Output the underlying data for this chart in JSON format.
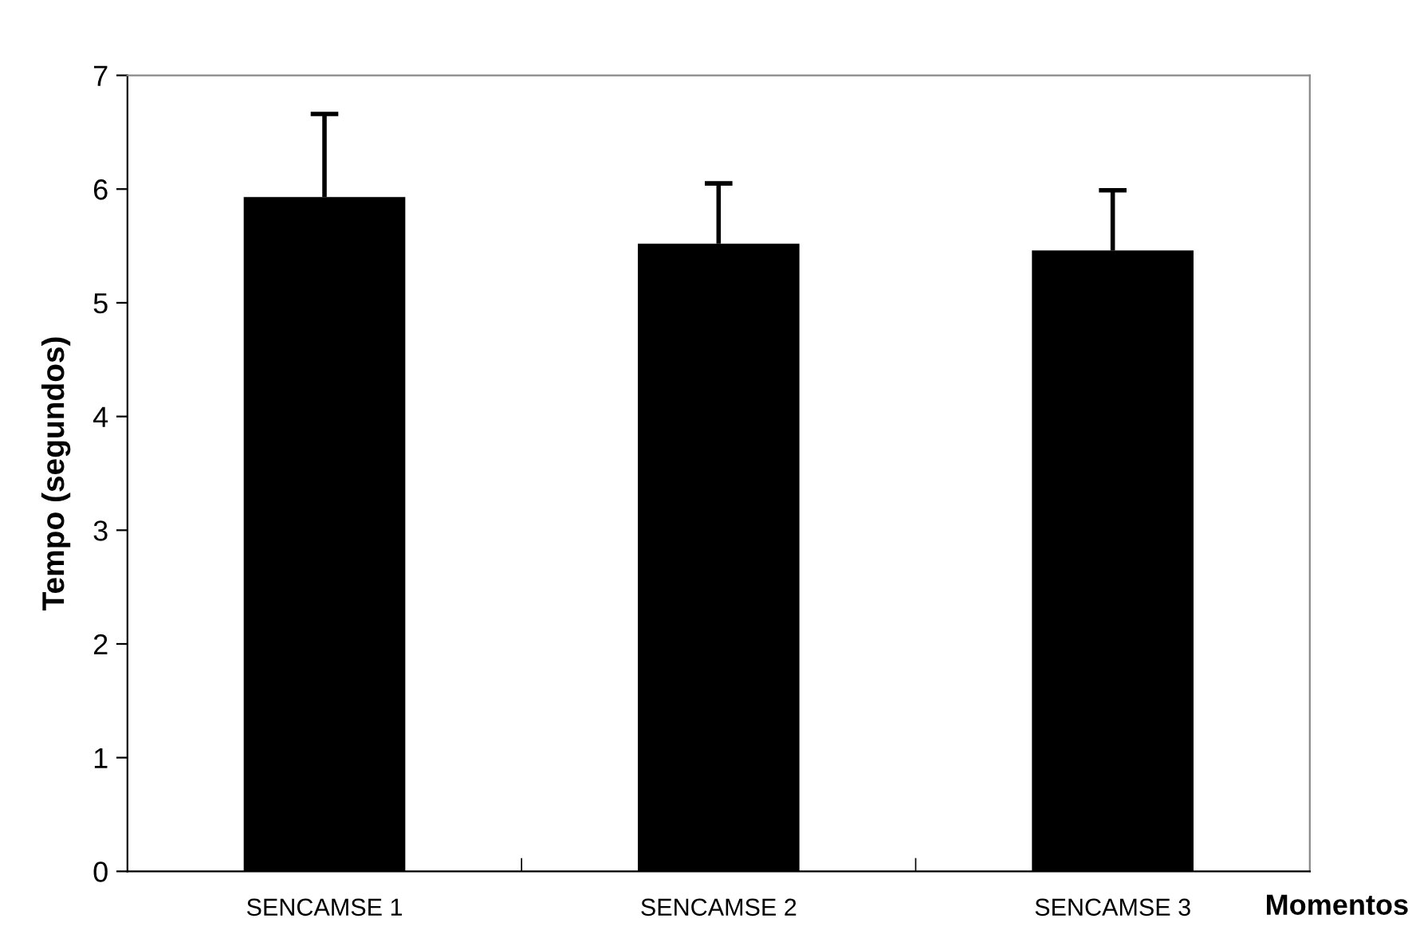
{
  "chart_data": {
    "type": "bar",
    "xlabel": "Momentos",
    "ylabel": "Tempo (segundos)",
    "categories": [
      "SENCAMSE 1",
      "SENCAMSE 2",
      "SENCAMSE 3"
    ],
    "values": [
      5.93,
      5.52,
      5.46
    ],
    "errors": [
      [
        5.93,
        6.66
      ],
      [
        5.52,
        6.05
      ],
      [
        5.46,
        5.99
      ]
    ],
    "color": "#000000",
    "ylim": [
      0,
      7
    ],
    "yticks": [
      0,
      1,
      2,
      3,
      4,
      5,
      6,
      7
    ],
    "grid": false,
    "legend": false
  }
}
